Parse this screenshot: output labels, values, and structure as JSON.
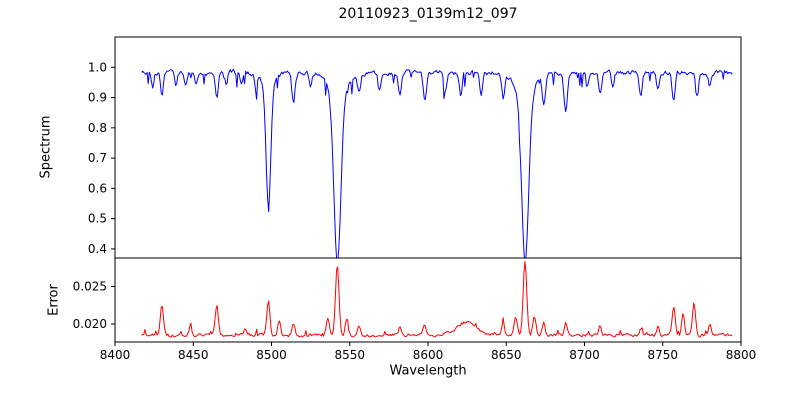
{
  "chart_data": {
    "type": "line",
    "title": "20110923_0139m12_097",
    "xlabel": "Wavelength",
    "legend": "none",
    "grid": false,
    "x_range": [
      8400,
      8800
    ],
    "x_data_range": [
      8417,
      8795
    ],
    "x_ticks": [
      8400,
      8450,
      8500,
      8550,
      8600,
      8650,
      8700,
      8750,
      8800
    ],
    "x_tick_labels": [
      "8400",
      "8450",
      "8500",
      "8550",
      "8600",
      "8650",
      "8700",
      "8750",
      "8800"
    ],
    "subplots": [
      {
        "id": "spectrum",
        "ylabel": "Spectrum",
        "line_color": "#0000ff",
        "ylim": [
          0.37,
          1.1
        ],
        "y_ticks": [
          0.4,
          0.5,
          0.6,
          0.7,
          0.8,
          0.9,
          1.0
        ],
        "y_tick_labels": [
          "0.4",
          "0.5",
          "0.6",
          "0.7",
          "0.8",
          "0.9",
          "1.0"
        ],
        "continuum": 0.982,
        "noise_amplitude": 0.015,
        "absorption_lines": [
          [
            8424,
            0.05,
            0.8
          ],
          [
            8430,
            0.075,
            0.9
          ],
          [
            8439,
            0.04,
            0.8
          ],
          [
            8445,
            0.05,
            0.8
          ],
          [
            8452,
            0.04,
            0.8
          ],
          [
            8465,
            0.09,
            0.9
          ],
          [
            8471,
            0.04,
            0.8
          ],
          [
            8481,
            0.04,
            0.8
          ],
          [
            8490,
            0.05,
            0.8
          ],
          [
            8498.0,
            0.385,
            1.5
          ],
          [
            8498.0,
            0.05,
            4.0
          ],
          [
            8514,
            0.1,
            1.0
          ],
          [
            8525,
            0.05,
            0.8
          ],
          [
            8542.1,
            0.56,
            2.2
          ],
          [
            8542.1,
            0.07,
            6.0
          ],
          [
            8556,
            0.06,
            0.9
          ],
          [
            8569,
            0.05,
            0.8
          ],
          [
            8582,
            0.07,
            0.9
          ],
          [
            8598,
            0.09,
            1.0
          ],
          [
            8611,
            0.06,
            0.9
          ],
          [
            8621,
            0.08,
            0.9
          ],
          [
            8634,
            0.07,
            0.9
          ],
          [
            8648,
            0.08,
            0.9
          ],
          [
            8662.1,
            0.55,
            2.2
          ],
          [
            8662.1,
            0.07,
            6.0
          ],
          [
            8674,
            0.1,
            1.0
          ],
          [
            8688,
            0.13,
            1.1
          ],
          [
            8702,
            0.05,
            0.8
          ],
          [
            8710,
            0.07,
            0.9
          ],
          [
            8718,
            0.05,
            0.8
          ],
          [
            8736,
            0.07,
            0.9
          ],
          [
            8747,
            0.06,
            0.9
          ],
          [
            8757,
            0.1,
            1.0
          ],
          [
            8772,
            0.08,
            0.9
          ],
          [
            8780,
            0.05,
            0.8
          ]
        ],
        "deep_line_minima": {
          "8498": 0.6,
          "8542": 0.42,
          "8662": 0.43
        }
      },
      {
        "id": "error",
        "ylabel": "Error",
        "line_color": "#ff0000",
        "ylim": [
          0.0176,
          0.0288
        ],
        "y_ticks": [
          0.02,
          0.025
        ],
        "y_tick_labels": [
          "0.020",
          "0.025"
        ],
        "baseline": 0.0185,
        "noise_amplitude": 0.0004,
        "peaks": [
          [
            8430,
            0.004,
            1.0
          ],
          [
            8448,
            0.0012,
            0.8
          ],
          [
            8465,
            0.004,
            1.0
          ],
          [
            8483,
            0.001,
            0.8
          ],
          [
            8498,
            0.0045,
            1.0
          ],
          [
            8505,
            0.0022,
            0.9
          ],
          [
            8514,
            0.0018,
            0.9
          ],
          [
            8536,
            0.0022,
            1.0
          ],
          [
            8542,
            0.0092,
            1.1
          ],
          [
            8548,
            0.002,
            1.0
          ],
          [
            8556,
            0.0012,
            0.9
          ],
          [
            8582,
            0.0012,
            0.9
          ],
          [
            8598,
            0.0015,
            0.9
          ],
          [
            8625,
            0.0018,
            6.0
          ],
          [
            8648,
            0.0015,
            0.9
          ],
          [
            8656,
            0.0026,
            1.0
          ],
          [
            8662,
            0.0098,
            1.1
          ],
          [
            8668,
            0.0026,
            1.0
          ],
          [
            8674,
            0.0018,
            0.9
          ],
          [
            8688,
            0.0018,
            0.9
          ],
          [
            8710,
            0.0012,
            0.8
          ],
          [
            8736,
            0.001,
            0.8
          ],
          [
            8747,
            0.0012,
            0.8
          ],
          [
            8757,
            0.0038,
            1.0
          ],
          [
            8763,
            0.0028,
            0.9
          ],
          [
            8770,
            0.0042,
            1.0
          ],
          [
            8780,
            0.0015,
            0.8
          ]
        ]
      }
    ]
  }
}
